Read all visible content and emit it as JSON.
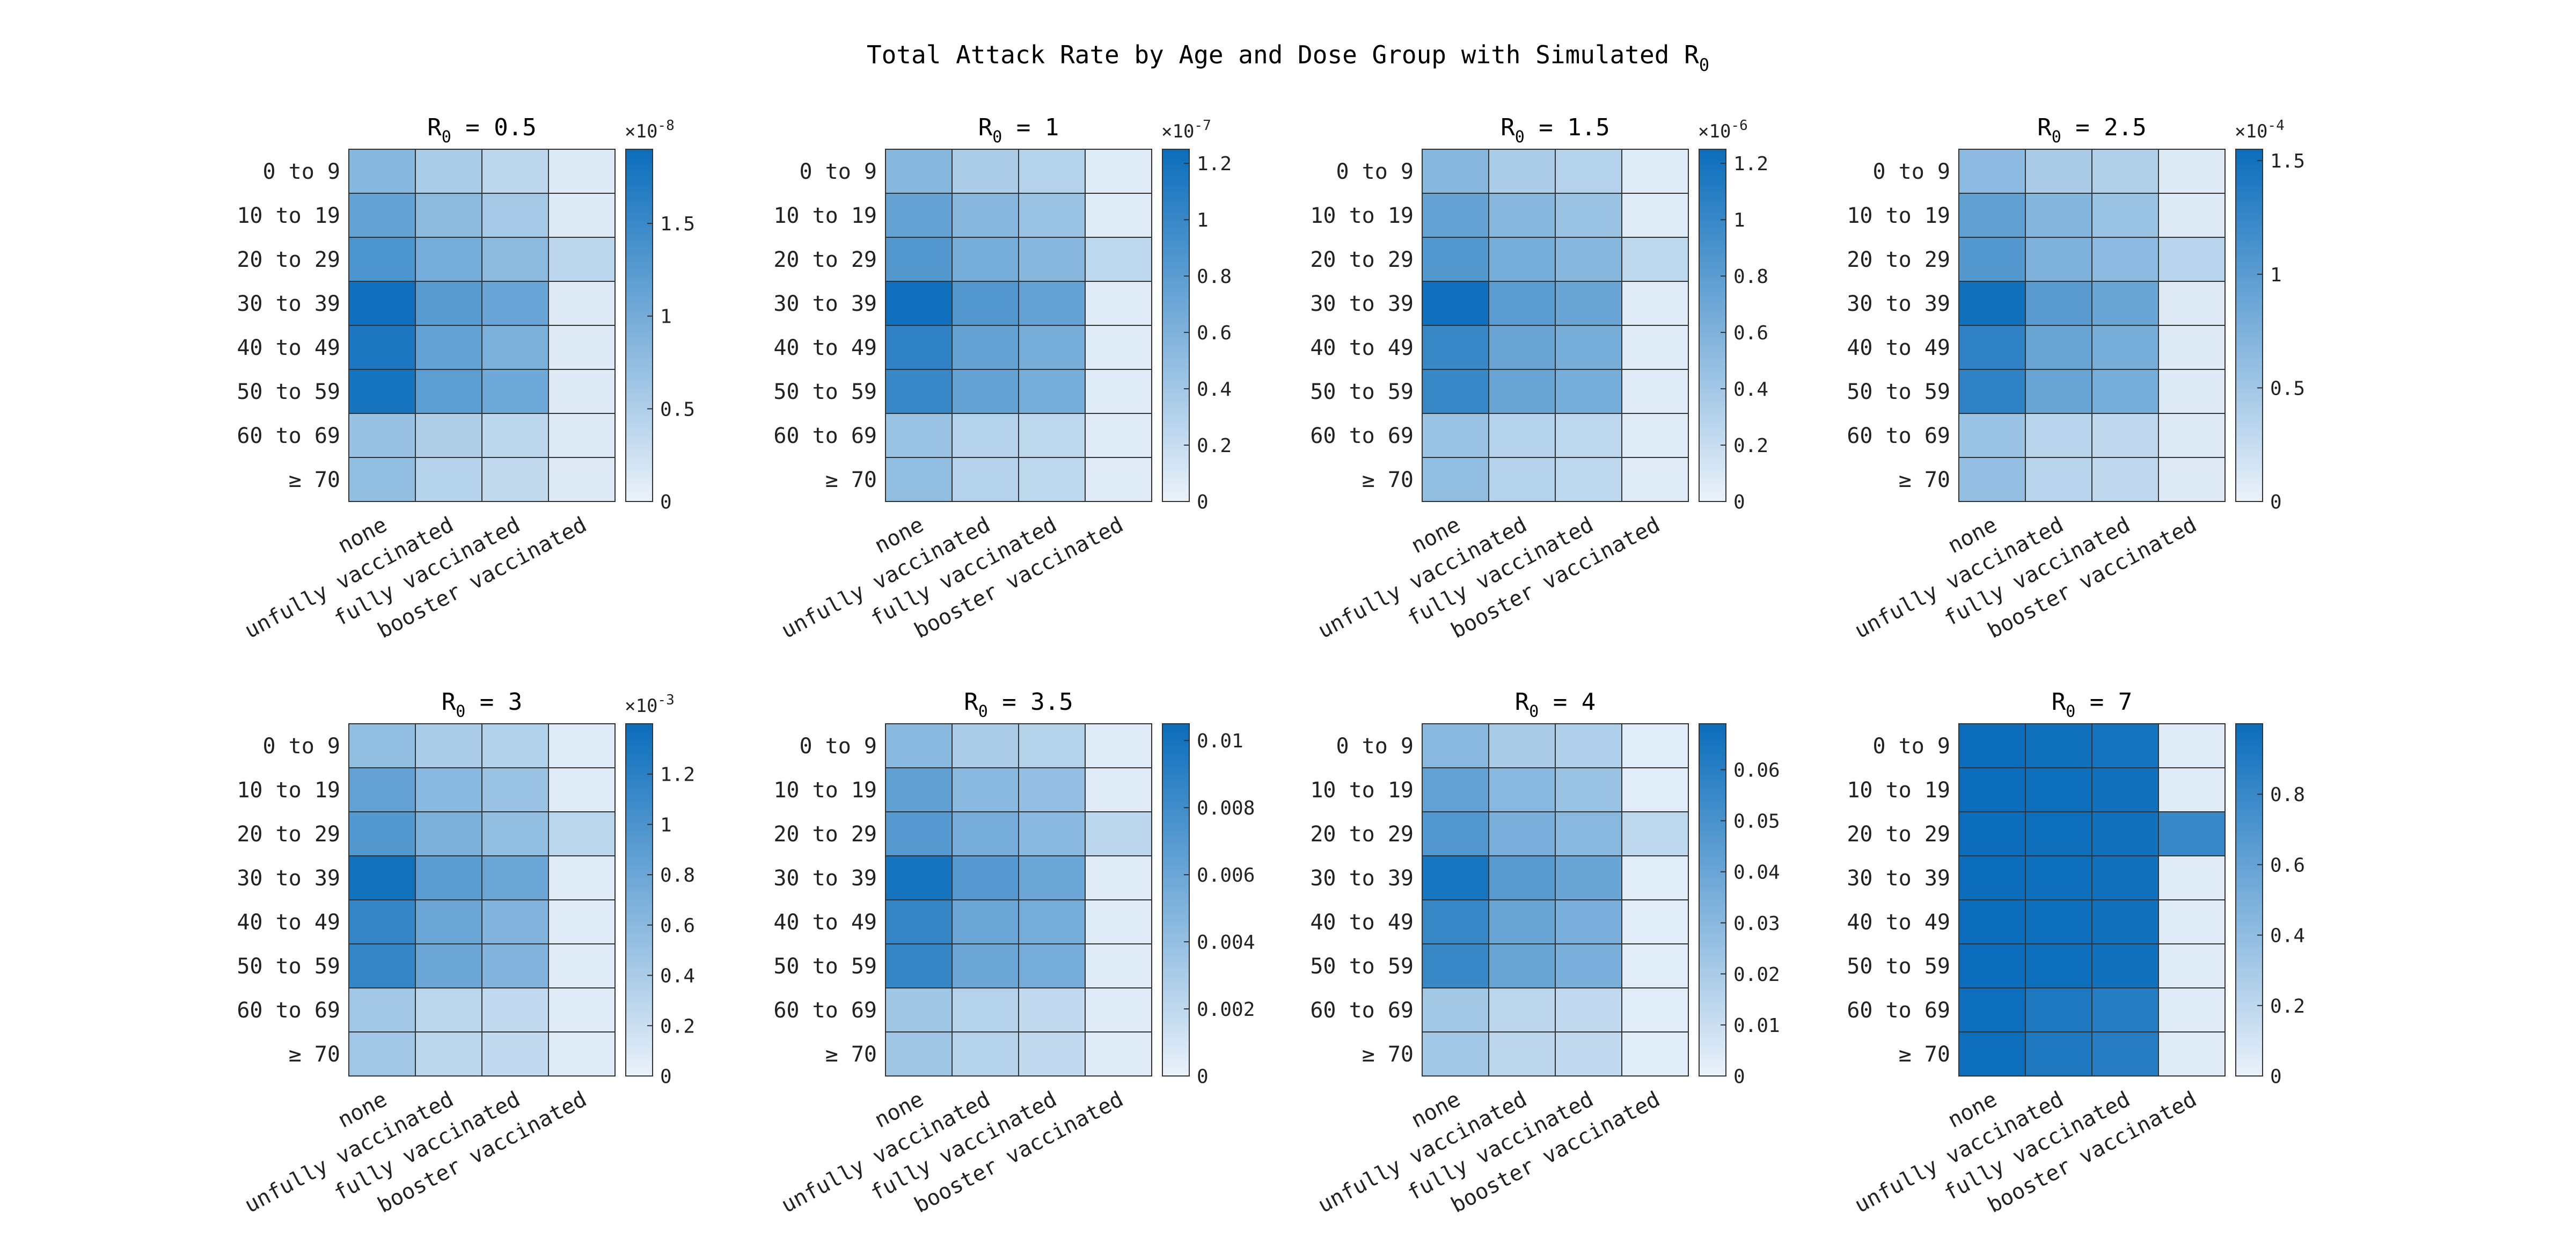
{
  "figure": {
    "title_main": "Total Attack Rate by Age and Dose Group with Simulated R",
    "title_sub": "0"
  },
  "colors": {
    "low": "#eaf2fa",
    "high": "#0b6dbb",
    "grid": "#333333",
    "background": "#ffffff"
  },
  "chart_data": [
    {
      "type": "heatmap",
      "title_prefix": "R",
      "title_sub": "0",
      "title_suffix": " = 0.5",
      "x_categories": [
        "none",
        "unfully vaccinated",
        "fully vaccinated",
        "booster vaccinated"
      ],
      "y_categories": [
        "0 to 9",
        "10 to 19",
        "20 to 29",
        "30 to 39",
        "40 to 49",
        "50 to 59",
        "60 to 69",
        "≥ 70"
      ],
      "values": [
        [
          0.85,
          0.55,
          0.4,
          0.1
        ],
        [
          1.15,
          0.8,
          0.6,
          0.1
        ],
        [
          1.35,
          1.0,
          0.8,
          0.4
        ],
        [
          1.85,
          1.25,
          1.1,
          0.1
        ],
        [
          1.75,
          1.15,
          0.95,
          0.1
        ],
        [
          1.8,
          1.2,
          1.05,
          0.1
        ],
        [
          0.7,
          0.5,
          0.4,
          0.1
        ],
        [
          0.75,
          0.45,
          0.35,
          0.1
        ]
      ],
      "colorbar": {
        "range": [
          0,
          1.9
        ],
        "ticks": [
          0,
          0.5,
          1,
          1.5
        ],
        "tick_labels": [
          "0",
          "0.5",
          "1",
          "1.5"
        ],
        "exponent_base": "×10",
        "exponent_power": "-8"
      }
    },
    {
      "type": "heatmap",
      "title_prefix": "R",
      "title_sub": "0",
      "title_suffix": " = 1",
      "x_categories": [
        "none",
        "unfully vaccinated",
        "fully vaccinated",
        "booster vaccinated"
      ],
      "y_categories": [
        "0 to 9",
        "10 to 19",
        "20 to 29",
        "30 to 39",
        "40 to 49",
        "50 to 59",
        "60 to 69",
        "≥ 70"
      ],
      "values": [
        [
          0.55,
          0.35,
          0.3,
          0.06
        ],
        [
          0.75,
          0.55,
          0.45,
          0.06
        ],
        [
          0.85,
          0.65,
          0.55,
          0.25
        ],
        [
          1.22,
          0.85,
          0.75,
          0.06
        ],
        [
          1.05,
          0.75,
          0.65,
          0.06
        ],
        [
          1.0,
          0.75,
          0.65,
          0.06
        ],
        [
          0.45,
          0.3,
          0.25,
          0.06
        ],
        [
          0.5,
          0.3,
          0.25,
          0.06
        ]
      ],
      "colorbar": {
        "range": [
          0,
          1.25
        ],
        "ticks": [
          0,
          0.2,
          0.4,
          0.6,
          0.8,
          1,
          1.2
        ],
        "tick_labels": [
          "0",
          "0.2",
          "0.4",
          "0.6",
          "0.8",
          "1",
          "1.2"
        ],
        "exponent_base": "×10",
        "exponent_power": "-7"
      }
    },
    {
      "type": "heatmap",
      "title_prefix": "R",
      "title_sub": "0",
      "title_suffix": " = 1.5",
      "x_categories": [
        "none",
        "unfully vaccinated",
        "fully vaccinated",
        "booster vaccinated"
      ],
      "y_categories": [
        "0 to 9",
        "10 to 19",
        "20 to 29",
        "30 to 39",
        "40 to 49",
        "50 to 59",
        "60 to 69",
        "≥ 70"
      ],
      "values": [
        [
          0.55,
          0.35,
          0.3,
          0.06
        ],
        [
          0.75,
          0.55,
          0.45,
          0.06
        ],
        [
          0.85,
          0.65,
          0.55,
          0.25
        ],
        [
          1.22,
          0.8,
          0.72,
          0.06
        ],
        [
          1.0,
          0.72,
          0.65,
          0.06
        ],
        [
          1.0,
          0.72,
          0.65,
          0.06
        ],
        [
          0.45,
          0.3,
          0.25,
          0.06
        ],
        [
          0.5,
          0.3,
          0.25,
          0.06
        ]
      ],
      "colorbar": {
        "range": [
          0,
          1.25
        ],
        "ticks": [
          0,
          0.2,
          0.4,
          0.6,
          0.8,
          1,
          1.2
        ],
        "tick_labels": [
          "0",
          "0.2",
          "0.4",
          "0.6",
          "0.8",
          "1",
          "1.2"
        ],
        "exponent_base": "×10",
        "exponent_power": "-6"
      }
    },
    {
      "type": "heatmap",
      "title_prefix": "R",
      "title_sub": "0",
      "title_suffix": " = 2.5",
      "x_categories": [
        "none",
        "unfully vaccinated",
        "fully vaccinated",
        "booster vaccinated"
      ],
      "y_categories": [
        "0 to 9",
        "10 to 19",
        "20 to 29",
        "30 to 39",
        "40 to 49",
        "50 to 59",
        "60 to 69",
        "≥ 70"
      ],
      "values": [
        [
          0.65,
          0.45,
          0.4,
          0.08
        ],
        [
          0.95,
          0.7,
          0.55,
          0.08
        ],
        [
          1.05,
          0.75,
          0.65,
          0.35
        ],
        [
          1.5,
          1.0,
          0.9,
          0.08
        ],
        [
          1.3,
          0.9,
          0.8,
          0.08
        ],
        [
          1.3,
          0.9,
          0.8,
          0.08
        ],
        [
          0.55,
          0.35,
          0.3,
          0.08
        ],
        [
          0.6,
          0.35,
          0.3,
          0.08
        ]
      ],
      "colorbar": {
        "range": [
          0,
          1.55
        ],
        "ticks": [
          0,
          0.5,
          1,
          1.5
        ],
        "tick_labels": [
          "0",
          "0.5",
          "1",
          "1.5"
        ],
        "exponent_base": "×10",
        "exponent_power": "-4"
      }
    },
    {
      "type": "heatmap",
      "title_prefix": "R",
      "title_sub": "0",
      "title_suffix": " = 3",
      "x_categories": [
        "none",
        "unfully vaccinated",
        "fully vaccinated",
        "booster vaccinated"
      ],
      "y_categories": [
        "0 to 9",
        "10 to 19",
        "20 to 29",
        "30 to 39",
        "40 to 49",
        "50 to 59",
        "60 to 69",
        "≥ 70"
      ],
      "values": [
        [
          0.55,
          0.4,
          0.35,
          0.07
        ],
        [
          0.85,
          0.6,
          0.5,
          0.07
        ],
        [
          0.95,
          0.7,
          0.55,
          0.3
        ],
        [
          1.35,
          0.9,
          0.8,
          0.07
        ],
        [
          1.15,
          0.8,
          0.65,
          0.07
        ],
        [
          1.15,
          0.8,
          0.65,
          0.07
        ],
        [
          0.45,
          0.3,
          0.25,
          0.07
        ],
        [
          0.45,
          0.3,
          0.25,
          0.07
        ]
      ],
      "colorbar": {
        "range": [
          0,
          1.4
        ],
        "ticks": [
          0,
          0.2,
          0.4,
          0.6,
          0.8,
          1,
          1.2
        ],
        "tick_labels": [
          "0",
          "0.2",
          "0.4",
          "0.6",
          "0.8",
          "1",
          "1.2"
        ],
        "exponent_base": "×10",
        "exponent_power": "-3"
      }
    },
    {
      "type": "heatmap",
      "title_prefix": "R",
      "title_sub": "0",
      "title_suffix": " = 3.5",
      "x_categories": [
        "none",
        "unfully vaccinated",
        "fully vaccinated",
        "booster vaccinated"
      ],
      "y_categories": [
        "0 to 9",
        "10 to 19",
        "20 to 29",
        "30 to 39",
        "40 to 49",
        "50 to 59",
        "60 to 69",
        "≥ 70"
      ],
      "values": [
        [
          0.0045,
          0.003,
          0.0025,
          0.0005
        ],
        [
          0.0065,
          0.0045,
          0.004,
          0.0005
        ],
        [
          0.007,
          0.0055,
          0.0045,
          0.0022
        ],
        [
          0.01,
          0.007,
          0.006,
          0.0005
        ],
        [
          0.0085,
          0.006,
          0.0055,
          0.0005
        ],
        [
          0.0085,
          0.006,
          0.0055,
          0.0005
        ],
        [
          0.0035,
          0.0025,
          0.002,
          0.0005
        ],
        [
          0.0035,
          0.0025,
          0.002,
          0.0005
        ]
      ],
      "colorbar": {
        "range": [
          0,
          0.0105
        ],
        "ticks": [
          0,
          0.002,
          0.004,
          0.006,
          0.008,
          0.01
        ],
        "tick_labels": [
          "0",
          "0.002",
          "0.004",
          "0.006",
          "0.008",
          "0.01"
        ],
        "exponent_base": "",
        "exponent_power": ""
      }
    },
    {
      "type": "heatmap",
      "title_prefix": "R",
      "title_sub": "0",
      "title_suffix": " = 4",
      "x_categories": [
        "none",
        "unfully vaccinated",
        "fully vaccinated",
        "booster vaccinated"
      ],
      "y_categories": [
        "0 to 9",
        "10 to 19",
        "20 to 29",
        "30 to 39",
        "40 to 49",
        "50 to 59",
        "60 to 69",
        "≥ 70"
      ],
      "values": [
        [
          0.03,
          0.02,
          0.018,
          0.003
        ],
        [
          0.042,
          0.03,
          0.025,
          0.003
        ],
        [
          0.047,
          0.035,
          0.03,
          0.014
        ],
        [
          0.065,
          0.045,
          0.04,
          0.003
        ],
        [
          0.055,
          0.04,
          0.035,
          0.003
        ],
        [
          0.055,
          0.04,
          0.035,
          0.003
        ],
        [
          0.022,
          0.015,
          0.013,
          0.003
        ],
        [
          0.022,
          0.015,
          0.013,
          0.003
        ]
      ],
      "colorbar": {
        "range": [
          0,
          0.069
        ],
        "ticks": [
          0,
          0.01,
          0.02,
          0.03,
          0.04,
          0.05,
          0.06
        ],
        "tick_labels": [
          "0",
          "0.01",
          "0.02",
          "0.03",
          "0.04",
          "0.05",
          "0.06"
        ],
        "exponent_base": "",
        "exponent_power": ""
      }
    },
    {
      "type": "heatmap",
      "title_prefix": "R",
      "title_sub": "0",
      "title_suffix": " = 7",
      "x_categories": [
        "none",
        "unfully vaccinated",
        "fully vaccinated",
        "booster vaccinated"
      ],
      "y_categories": [
        "0 to 9",
        "10 to 19",
        "20 to 29",
        "30 to 39",
        "40 to 49",
        "50 to 59",
        "60 to 69",
        "≥ 70"
      ],
      "values": [
        [
          1.0,
          0.98,
          0.95,
          0.05
        ],
        [
          1.0,
          0.99,
          0.97,
          0.05
        ],
        [
          1.0,
          0.99,
          0.97,
          0.8
        ],
        [
          1.0,
          0.99,
          0.97,
          0.05
        ],
        [
          1.0,
          0.99,
          0.97,
          0.05
        ],
        [
          1.0,
          0.99,
          0.97,
          0.05
        ],
        [
          0.99,
          0.92,
          0.88,
          0.05
        ],
        [
          0.99,
          0.92,
          0.88,
          0.05
        ]
      ],
      "colorbar": {
        "range": [
          0,
          1.0
        ],
        "ticks": [
          0,
          0.2,
          0.4,
          0.6,
          0.8
        ],
        "tick_labels": [
          "0",
          "0.2",
          "0.4",
          "0.6",
          "0.8"
        ],
        "exponent_base": "",
        "exponent_power": ""
      }
    }
  ]
}
